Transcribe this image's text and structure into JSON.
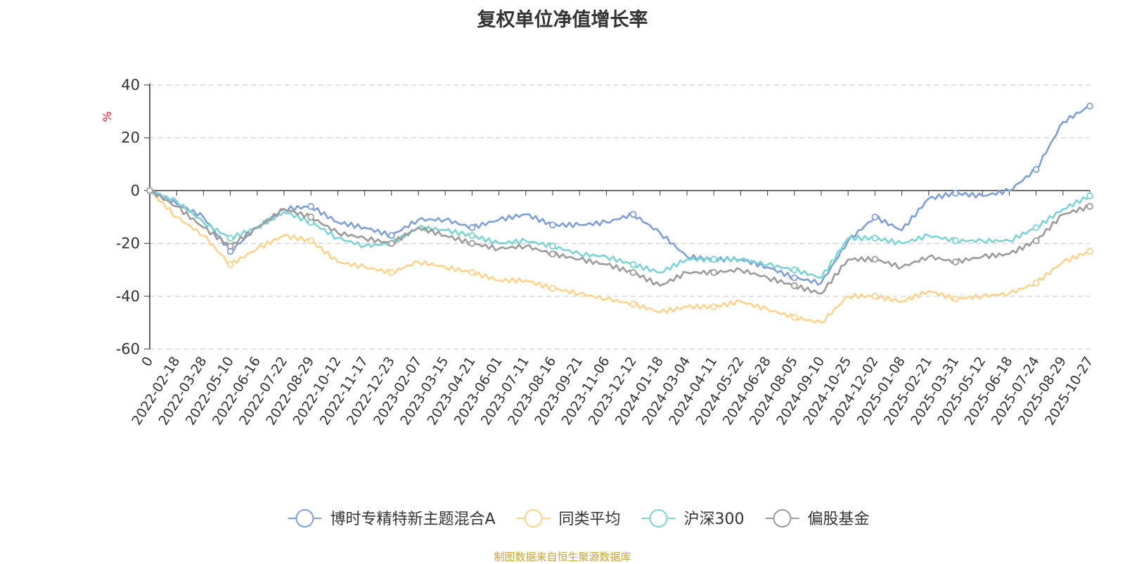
{
  "chart_data": {
    "type": "line",
    "title": "复权单位净值增长率",
    "ylabel": "%",
    "ylim": [
      -60,
      40
    ],
    "yticks": [
      40,
      20,
      0,
      -20,
      -40,
      -60
    ],
    "grid": true,
    "legend_position": "bottom",
    "source": "制图数据来自恒生聚源数据库",
    "x_categories": [
      "0",
      "2022-02-18",
      "2022-03-28",
      "2022-05-10",
      "2022-06-16",
      "2022-07-22",
      "2022-08-29",
      "2022-10-12",
      "2022-11-17",
      "2022-12-23",
      "2023-02-07",
      "2023-03-15",
      "2023-04-21",
      "2023-06-01",
      "2023-07-11",
      "2023-08-16",
      "2023-09-21",
      "2023-11-06",
      "2023-12-12",
      "2024-01-18",
      "2024-03-04",
      "2024-04-11",
      "2024-05-22",
      "2024-06-28",
      "2024-08-05",
      "2024-09-10",
      "2024-10-25",
      "2024-12-02",
      "2025-01-08",
      "2025-02-21",
      "2025-03-31",
      "2025-05-12",
      "2025-06-18",
      "2025-07-24",
      "2025-08-29",
      "2025-10-27"
    ],
    "series": [
      {
        "name": "博时专精特新主题混合A",
        "color": "#7f9fd4",
        "values": [
          0,
          -5,
          -10,
          -23,
          -14,
          -7,
          -6,
          -12,
          -14,
          -17,
          -11,
          -11,
          -14,
          -11,
          -9,
          -13,
          -13,
          -12,
          -9,
          -16,
          -25,
          -26,
          -26,
          -29,
          -33,
          -35,
          -19,
          -10,
          -15,
          -3,
          -1,
          -2,
          0,
          8,
          26,
          32
        ]
      },
      {
        "name": "同类平均",
        "color": "#fbd38c",
        "values": [
          0,
          -10,
          -17,
          -28,
          -22,
          -17,
          -19,
          -27,
          -29,
          -31,
          -27,
          -29,
          -31,
          -34,
          -34,
          -37,
          -39,
          -41,
          -43,
          -46,
          -44,
          -44,
          -42,
          -45,
          -48,
          -50,
          -40,
          -40,
          -42,
          -38,
          -41,
          -40,
          -39,
          -35,
          -27,
          -23
        ]
      },
      {
        "name": "沪深300",
        "color": "#7dd3d3",
        "values": [
          0,
          -4,
          -12,
          -18,
          -14,
          -8,
          -12,
          -18,
          -21,
          -20,
          -14,
          -15,
          -17,
          -20,
          -19,
          -21,
          -24,
          -25,
          -28,
          -31,
          -26,
          -26,
          -26,
          -28,
          -30,
          -33,
          -18,
          -18,
          -20,
          -17,
          -19,
          -19,
          -19,
          -14,
          -7,
          -2
        ]
      },
      {
        "name": "偏股基金",
        "color": "#9b9b9b",
        "values": [
          0,
          -6,
          -14,
          -21,
          -14,
          -7,
          -10,
          -16,
          -18,
          -20,
          -14,
          -17,
          -20,
          -22,
          -21,
          -24,
          -26,
          -28,
          -31,
          -36,
          -31,
          -31,
          -30,
          -33,
          -36,
          -39,
          -26,
          -26,
          -29,
          -25,
          -27,
          -25,
          -24,
          -19,
          -9,
          -6
        ]
      }
    ]
  }
}
